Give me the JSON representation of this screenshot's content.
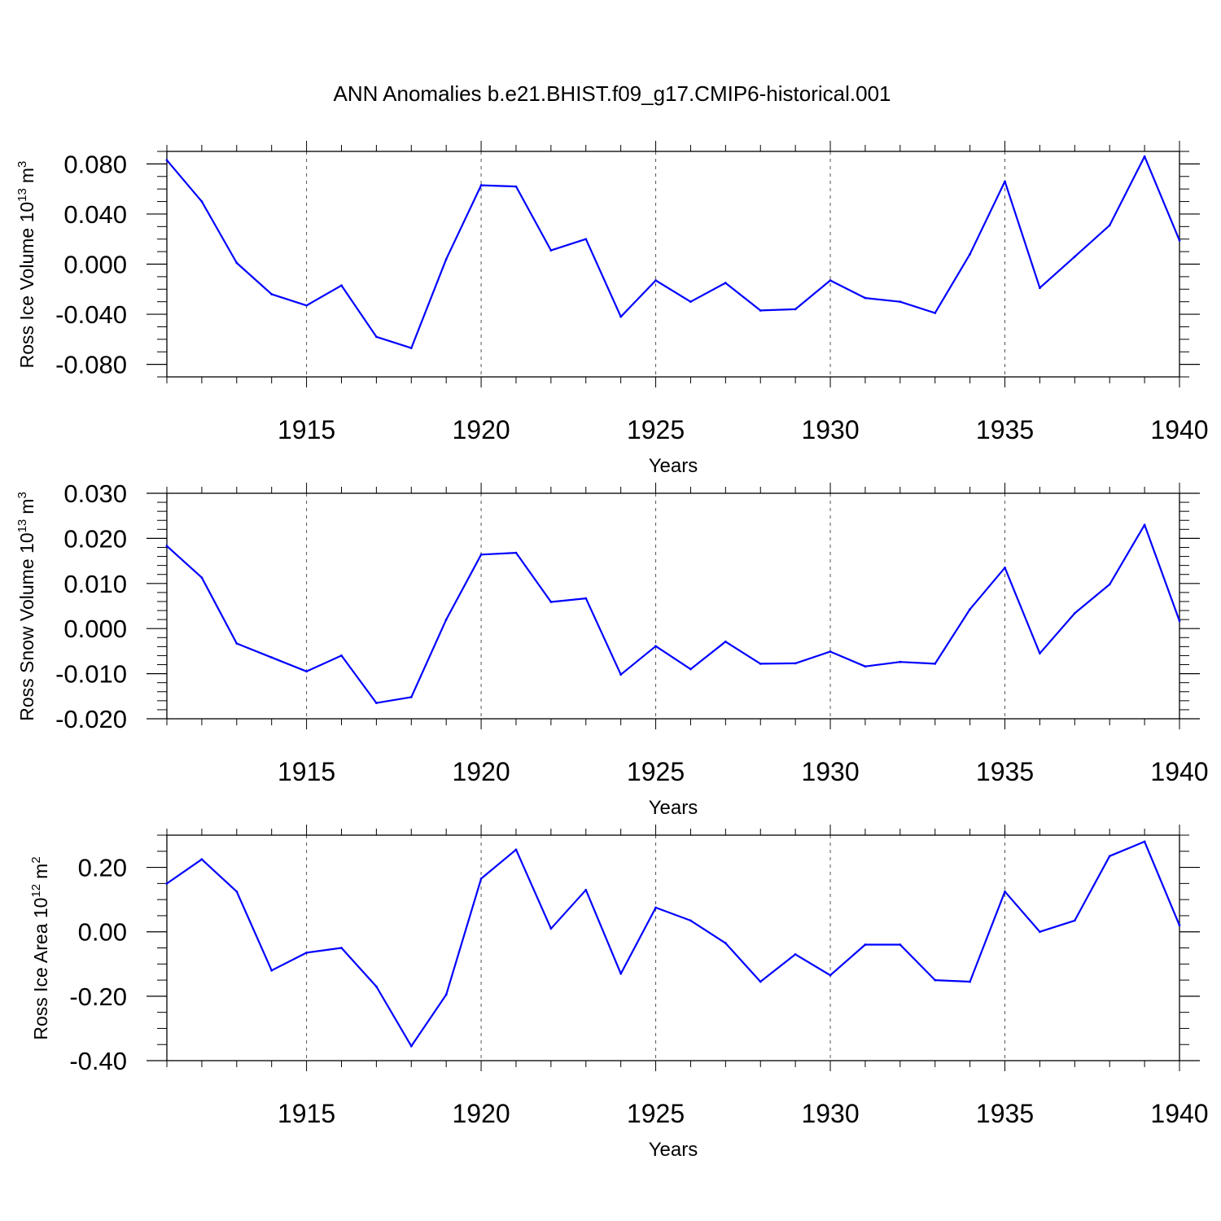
{
  "title": "ANN Anomalies b.e21.BHIST.f09_g17.CMIP6-historical.001",
  "colors": {
    "line": "#0000ff",
    "axis": "#000000",
    "grid": "#555555"
  },
  "chart_data": [
    {
      "type": "line",
      "ylabel": {
        "main": "Ross Ice Volume 10",
        "exp": "13",
        "unit": "m",
        "unit_exp": "3"
      },
      "xlabel": "Years",
      "xlim": [
        1911,
        1940
      ],
      "ylim": [
        -0.09,
        0.09
      ],
      "yticks": [
        0.08,
        0.04,
        0.0,
        -0.04,
        -0.08
      ],
      "ytick_labels": [
        "0.080",
        "0.040",
        "0.000",
        "-0.040",
        "-0.080"
      ],
      "yminor_step": 0.01,
      "xticks": [
        1915,
        1920,
        1925,
        1930,
        1935,
        1940
      ],
      "xtick_labels": [
        "1915",
        "1920",
        "1925",
        "1930",
        "1935",
        "1940"
      ],
      "x": [
        1911,
        1912,
        1913,
        1914,
        1915,
        1916,
        1917,
        1918,
        1919,
        1920,
        1921,
        1922,
        1923,
        1924,
        1925,
        1926,
        1927,
        1928,
        1929,
        1930,
        1931,
        1932,
        1933,
        1934,
        1935,
        1936,
        1937,
        1938,
        1939,
        1940
      ],
      "series": [
        {
          "name": "Ross Ice Volume",
          "values": [
            0.083,
            0.05,
            0.001,
            -0.024,
            -0.033,
            -0.017,
            -0.058,
            -0.067,
            0.004,
            0.063,
            0.062,
            0.011,
            0.02,
            -0.042,
            -0.013,
            -0.03,
            -0.015,
            -0.037,
            -0.036,
            -0.013,
            -0.027,
            -0.03,
            -0.039,
            0.008,
            0.066,
            -0.019,
            0.006,
            0.031,
            0.086,
            0.019
          ]
        }
      ]
    },
    {
      "type": "line",
      "ylabel": {
        "main": "Ross Snow Volume 10",
        "exp": "13",
        "unit": "m",
        "unit_exp": "3"
      },
      "xlabel": "Years",
      "xlim": [
        1911,
        1940
      ],
      "ylim": [
        -0.02,
        0.03
      ],
      "yticks": [
        0.03,
        0.02,
        0.01,
        0.0,
        -0.01,
        -0.02
      ],
      "ytick_labels": [
        "0.030",
        "0.020",
        "0.010",
        "0.000",
        "-0.010",
        "-0.020"
      ],
      "yminor_step": 0.002,
      "xticks": [
        1915,
        1920,
        1925,
        1930,
        1935,
        1940
      ],
      "xtick_labels": [
        "1915",
        "1920",
        "1925",
        "1930",
        "1935",
        "1940"
      ],
      "x": [
        1911,
        1912,
        1913,
        1914,
        1915,
        1916,
        1917,
        1918,
        1919,
        1920,
        1921,
        1922,
        1923,
        1924,
        1925,
        1926,
        1927,
        1928,
        1929,
        1930,
        1931,
        1932,
        1933,
        1934,
        1935,
        1936,
        1937,
        1938,
        1939,
        1940
      ],
      "series": [
        {
          "name": "Ross Snow Volume",
          "values": [
            0.0183,
            0.0113,
            -0.0033,
            -0.0064,
            -0.0095,
            -0.006,
            -0.0165,
            -0.0152,
            0.002,
            0.0164,
            0.0168,
            0.0059,
            0.0067,
            -0.0102,
            -0.0039,
            -0.009,
            -0.0029,
            -0.0078,
            -0.0077,
            -0.0051,
            -0.0084,
            -0.0074,
            -0.0078,
            0.0043,
            0.0135,
            -0.0055,
            0.0034,
            0.0098,
            0.023,
            0.0017
          ]
        }
      ]
    },
    {
      "type": "line",
      "ylabel": {
        "main": "Ross Ice Area 10",
        "exp": "12",
        "unit": "m",
        "unit_exp": "2"
      },
      "xlabel": "Years",
      "xlim": [
        1911,
        1940
      ],
      "ylim": [
        -0.4,
        0.3
      ],
      "yticks": [
        0.2,
        0.0,
        -0.2,
        -0.4
      ],
      "ytick_labels": [
        "0.20",
        "0.00",
        "-0.20",
        "-0.40"
      ],
      "yminor_step": 0.05,
      "xticks": [
        1915,
        1920,
        1925,
        1930,
        1935,
        1940
      ],
      "xtick_labels": [
        "1915",
        "1920",
        "1925",
        "1930",
        "1935",
        "1940"
      ],
      "x": [
        1911,
        1912,
        1913,
        1914,
        1915,
        1916,
        1917,
        1918,
        1919,
        1920,
        1921,
        1922,
        1923,
        1924,
        1925,
        1926,
        1927,
        1928,
        1929,
        1930,
        1931,
        1932,
        1933,
        1934,
        1935,
        1936,
        1937,
        1938,
        1939,
        1940
      ],
      "series": [
        {
          "name": "Ross Ice Area",
          "values": [
            0.15,
            0.225,
            0.125,
            -0.12,
            -0.065,
            -0.05,
            -0.17,
            -0.355,
            -0.195,
            0.165,
            0.255,
            0.01,
            0.13,
            -0.13,
            0.075,
            0.035,
            -0.035,
            -0.155,
            -0.07,
            -0.135,
            -0.04,
            -0.04,
            -0.15,
            -0.155,
            0.125,
            0.0,
            0.035,
            0.235,
            0.28,
            0.02
          ]
        }
      ]
    }
  ]
}
